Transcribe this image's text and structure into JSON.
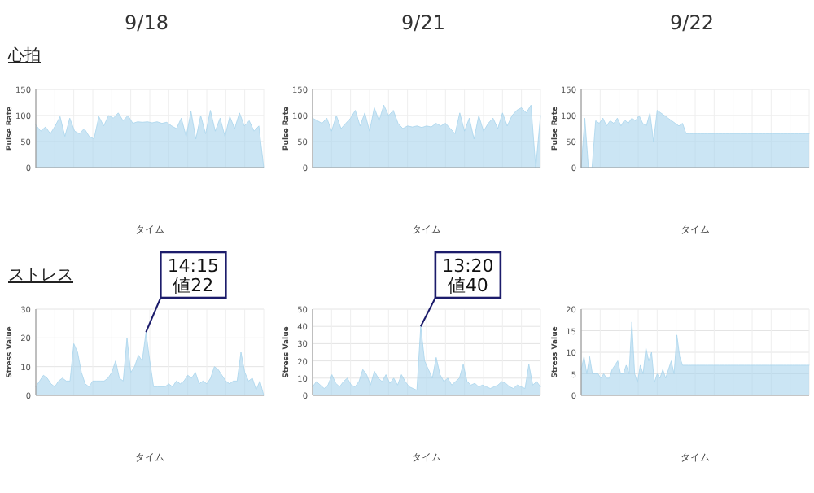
{
  "chart_data": [
    {
      "type": "area",
      "title": "9/18",
      "subtitle": "心拍",
      "xlabel": "タイム",
      "ylabel": "Pulse Rate",
      "tick_labels": "y",
      "grid": true,
      "ylim": [
        0,
        150
      ],
      "yticks": [
        0,
        50,
        100,
        150
      ],
      "categories": [
        null,
        null,
        null,
        null,
        null,
        null,
        null,
        null,
        null,
        null,
        null,
        null,
        null,
        null,
        null,
        null,
        null,
        null,
        null,
        null,
        null,
        null,
        null,
        null,
        null,
        null,
        null,
        null,
        null,
        null,
        null,
        null,
        null,
        null,
        null,
        null,
        null,
        null,
        null,
        null,
        null,
        null,
        null,
        null,
        null,
        null,
        null,
        null
      ],
      "series": [
        {
          "color": "#a8d4ec",
          "values": [
            82,
            70,
            78,
            65,
            80,
            98,
            60,
            95,
            70,
            65,
            75,
            60,
            55,
            98,
            80,
            100,
            95,
            105,
            90,
            100,
            85,
            88,
            87,
            88,
            86,
            88,
            85,
            87,
            80,
            75,
            95,
            60,
            108,
            55,
            100,
            65,
            110,
            70,
            95,
            60,
            98,
            75,
            105,
            80,
            90,
            70,
            80,
            0
          ]
        }
      ]
    },
    {
      "type": "area",
      "title": "9/21",
      "xlabel": "タイム",
      "ylabel": "Pulse Rate",
      "tick_labels": "y",
      "grid": true,
      "ylim": [
        0,
        150
      ],
      "yticks": [
        0,
        50,
        100,
        150
      ],
      "categories": [
        null,
        null,
        null,
        null,
        null,
        null,
        null,
        null,
        null,
        null,
        null,
        null,
        null,
        null,
        null,
        null,
        null,
        null,
        null,
        null,
        null,
        null,
        null,
        null,
        null,
        null,
        null,
        null,
        null,
        null,
        null,
        null,
        null,
        null,
        null,
        null,
        null,
        null,
        null,
        null,
        null,
        null,
        null,
        null,
        null,
        null,
        null,
        null,
        null
      ],
      "series": [
        {
          "color": "#a8d4ec",
          "values": [
            95,
            90,
            85,
            95,
            70,
            100,
            75,
            85,
            95,
            110,
            80,
            105,
            70,
            115,
            90,
            120,
            100,
            110,
            85,
            75,
            80,
            78,
            80,
            77,
            80,
            78,
            85,
            80,
            85,
            75,
            65,
            105,
            70,
            95,
            55,
            100,
            70,
            85,
            95,
            75,
            105,
            80,
            100,
            110,
            115,
            105,
            120,
            0,
            100
          ]
        }
      ]
    },
    {
      "type": "area",
      "title": "9/22",
      "xlabel": "タイム",
      "ylabel": "Pulse Rate",
      "tick_labels": "y",
      "grid": true,
      "ylim": [
        0,
        150
      ],
      "yticks": [
        0,
        50,
        100,
        150
      ],
      "categories": [
        null,
        null,
        null,
        null,
        null,
        null,
        null,
        null,
        null,
        null,
        null,
        null,
        null,
        null,
        null,
        null,
        null,
        null,
        null,
        null,
        null,
        null,
        null,
        null,
        null,
        null,
        null,
        null,
        null,
        null,
        null,
        null,
        null,
        null,
        null,
        null,
        null,
        null,
        null,
        null,
        null,
        null,
        null,
        null,
        null,
        null,
        null,
        null,
        null,
        null,
        null,
        null,
        null,
        null,
        null,
        null,
        null,
        null,
        null,
        null,
        null,
        null,
        null,
        null
      ],
      "series": [
        {
          "color": "#a8d4ec",
          "values": [
            0,
            95,
            0,
            0,
            90,
            85,
            95,
            80,
            90,
            85,
            95,
            80,
            92,
            85,
            95,
            90,
            100,
            85,
            80,
            105,
            50,
            110,
            105,
            100,
            95,
            90,
            85,
            80,
            85,
            65,
            65,
            65,
            65,
            65,
            65,
            65,
            65,
            65,
            65,
            65,
            65,
            65,
            65,
            65,
            65,
            65,
            65,
            65,
            65,
            65,
            65,
            65,
            65,
            65,
            65,
            65,
            65,
            65,
            65,
            65,
            65,
            65,
            65,
            65
          ]
        }
      ]
    },
    {
      "type": "area",
      "subtitle": "ストレス",
      "xlabel": "タイム",
      "ylabel": "Stress Value",
      "tick_labels": "y",
      "grid": true,
      "ylim": [
        0,
        30
      ],
      "yticks": [
        0,
        10,
        20,
        30
      ],
      "annotations": [
        "14:15\n値22"
      ],
      "categories": [
        null,
        null,
        null,
        null,
        null,
        null,
        null,
        null,
        null,
        null,
        null,
        null,
        null,
        null,
        null,
        null,
        null,
        null,
        null,
        null,
        null,
        null,
        null,
        null,
        null,
        null,
        null,
        null,
        null,
        null,
        null,
        null,
        null,
        null,
        null,
        null,
        null,
        null,
        null,
        null,
        null,
        null,
        null,
        null,
        null,
        null,
        null,
        null,
        null,
        null,
        null,
        null,
        null,
        null,
        null,
        null,
        null,
        null,
        null,
        null,
        null
      ],
      "series": [
        {
          "color": "#a8d4ec",
          "values": [
            3,
            5,
            7,
            6,
            4,
            3,
            5,
            6,
            5,
            5,
            18,
            15,
            8,
            4,
            3,
            5,
            5,
            5,
            5,
            6,
            8,
            12,
            6,
            5,
            20,
            8,
            10,
            14,
            12,
            22,
            12,
            3,
            3,
            3,
            3,
            4,
            3,
            5,
            4,
            5,
            7,
            6,
            8,
            4,
            5,
            4,
            6,
            10,
            9,
            7,
            5,
            4,
            5,
            5,
            15,
            8,
            5,
            6,
            2,
            5,
            0
          ]
        }
      ]
    },
    {
      "type": "area",
      "xlabel": "タイム",
      "ylabel": "Stress Value",
      "tick_labels": "y",
      "grid": true,
      "ylim": [
        0,
        50
      ],
      "yticks": [
        0,
        10,
        20,
        30,
        40,
        50
      ],
      "annotations": [
        "13:20\n値40"
      ],
      "categories": [
        null,
        null,
        null,
        null,
        null,
        null,
        null,
        null,
        null,
        null,
        null,
        null,
        null,
        null,
        null,
        null,
        null,
        null,
        null,
        null,
        null,
        null,
        null,
        null,
        null,
        null,
        null,
        null,
        null,
        null,
        null,
        null,
        null,
        null,
        null,
        null,
        null,
        null,
        null,
        null,
        null,
        null,
        null,
        null,
        null,
        null,
        null,
        null,
        null,
        null,
        null,
        null,
        null,
        null,
        null,
        null,
        null,
        null,
        null,
        null
      ],
      "series": [
        {
          "color": "#a8d4ec",
          "values": [
            5,
            8,
            6,
            4,
            6,
            12,
            7,
            5,
            8,
            10,
            6,
            5,
            8,
            15,
            12,
            6,
            14,
            10,
            8,
            12,
            7,
            10,
            6,
            12,
            8,
            5,
            4,
            3,
            40,
            20,
            15,
            10,
            22,
            12,
            8,
            10,
            6,
            8,
            10,
            18,
            8,
            6,
            7,
            5,
            6,
            5,
            4,
            5,
            6,
            8,
            7,
            5,
            4,
            6,
            5,
            4,
            18,
            6,
            8,
            5
          ]
        }
      ]
    },
    {
      "type": "area",
      "xlabel": "タイム",
      "ylabel": "Stress Value",
      "tick_labels": "y",
      "grid": true,
      "ylim": [
        0,
        20
      ],
      "yticks": [
        0,
        5,
        10,
        15,
        20
      ],
      "categories": [
        null,
        null,
        null,
        null,
        null,
        null,
        null,
        null,
        null,
        null,
        null,
        null,
        null,
        null,
        null,
        null,
        null,
        null,
        null,
        null,
        null,
        null,
        null,
        null,
        null,
        null,
        null,
        null,
        null,
        null,
        null,
        null,
        null,
        null,
        null,
        null,
        null,
        null,
        null,
        null,
        null,
        null,
        null,
        null,
        null,
        null,
        null,
        null,
        null,
        null,
        null,
        null,
        null,
        null,
        null,
        null,
        null,
        null,
        null,
        null,
        null,
        null,
        null,
        null,
        null,
        null,
        null,
        null,
        null,
        null,
        null,
        null,
        null,
        null,
        null,
        null,
        null,
        null,
        null,
        null,
        null,
        null
      ],
      "series": [
        {
          "color": "#a8d4ec",
          "values": [
            6,
            9,
            5,
            9,
            5,
            5,
            5,
            4,
            5,
            4,
            4,
            6,
            7,
            8,
            5,
            5,
            7,
            5,
            17,
            5,
            3,
            7,
            5,
            11,
            8,
            10,
            3,
            5,
            4,
            6,
            4,
            6,
            8,
            5,
            14,
            9,
            7,
            7,
            7,
            7,
            7,
            7,
            7,
            7,
            7,
            7,
            7,
            7,
            7,
            7,
            7,
            7,
            7,
            7,
            7,
            7,
            7,
            7,
            7,
            7,
            7,
            7,
            7,
            7,
            7,
            7,
            7,
            7,
            7,
            7,
            7,
            7,
            7,
            7,
            7,
            7,
            7,
            7,
            7,
            7,
            7,
            7
          ]
        }
      ]
    }
  ]
}
